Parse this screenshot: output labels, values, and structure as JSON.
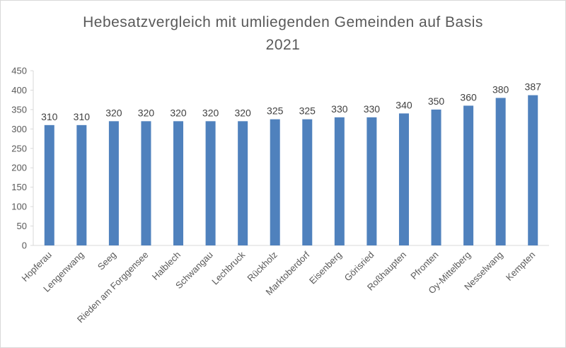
{
  "chart_data": {
    "type": "bar",
    "title_line1": "Hebesatzvergleich mit umliegenden Gemeinden auf Basis",
    "title_line2": "2021",
    "categories": [
      "Hopferau",
      "Lengenwang",
      "Seeg",
      "Rieden am Forggensee",
      "Halblech",
      "Schwangau",
      "Lechbruck",
      "Rückholz",
      "Marktoberdorf",
      "Eisenberg",
      "Görisried",
      "Roßhaupten",
      "Pfronten",
      "Oy-Mittelberg",
      "Nesselwang",
      "Kempten"
    ],
    "values": [
      310,
      310,
      320,
      320,
      320,
      320,
      320,
      325,
      325,
      330,
      330,
      340,
      350,
      360,
      380,
      387
    ],
    "ylim": [
      0,
      450
    ],
    "yticks": [
      0,
      50,
      100,
      150,
      200,
      250,
      300,
      350,
      400,
      450
    ],
    "grid": false,
    "legend": "none",
    "bar_color": "#4f81bd"
  }
}
